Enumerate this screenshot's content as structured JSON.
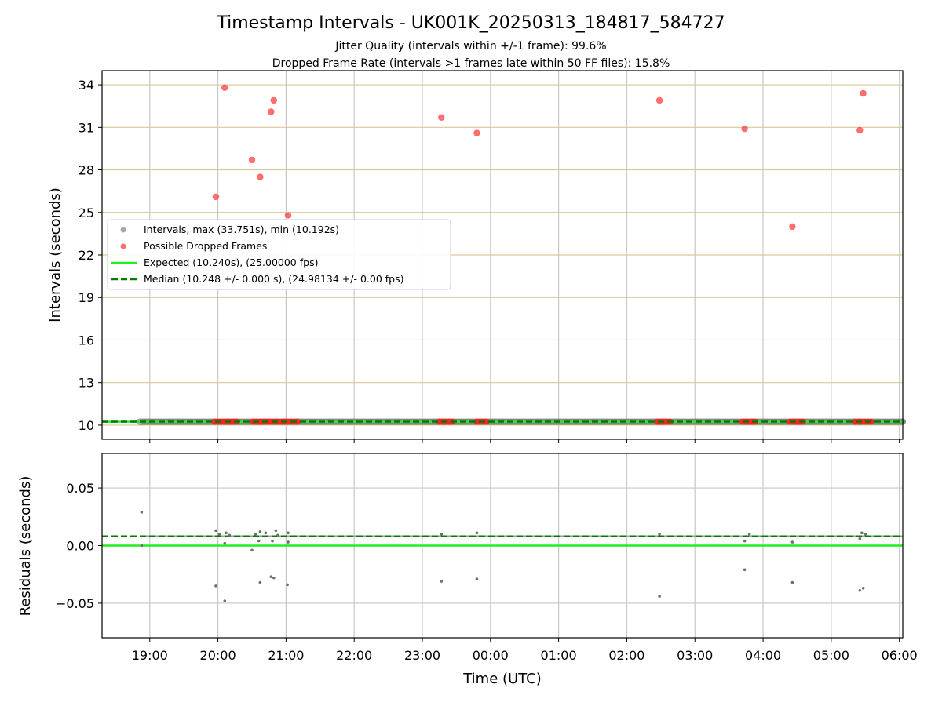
{
  "figure": {
    "title": "Timestamp Intervals - UK001K_20250313_184817_584727",
    "subtitle_1": "Jitter Quality (intervals within +/-1 frame): 99.6%",
    "subtitle_2": "Dropped Frame Rate (intervals >1 frames late within 50 FF files): 15.8%"
  },
  "chart_data": [
    {
      "type": "scatter",
      "panel": "intervals",
      "xlabel": "",
      "ylabel": "Intervals (seconds)",
      "x_unit": "hours since 00:00 UTC (values > 24 are after midnight)",
      "xlim": [
        18.3,
        30.05
      ],
      "ylim": [
        9.0,
        35.0
      ],
      "y_ticks": [
        10,
        13,
        16,
        19,
        22,
        25,
        28,
        31,
        34
      ],
      "grid": true,
      "legend_position": "center-left",
      "legend": [
        {
          "label": "Intervals, max (33.751s), min (10.192s)",
          "kind": "marker",
          "color": "#a9a9a9"
        },
        {
          "label": "Possible Dropped Frames",
          "kind": "marker",
          "color": "#ff5555"
        },
        {
          "label": "Expected (10.240s), (25.00000 fps)",
          "kind": "solid-line",
          "color": "#22ee22"
        },
        {
          "label": "Median (10.248 +/- 0.000 s), (24.98134 +/- 0.00 fps)",
          "kind": "dashed-line",
          "color": "#007a00"
        }
      ],
      "series": [
        {
          "name": "Intervals, max (33.751s), min (10.192s)",
          "color": "#808080",
          "x_range": [
            18.85,
            30.05
          ],
          "y": 10.24
        },
        {
          "name": "Possible Dropped Frames",
          "color": "#ff3333",
          "points": [
            [
              19.97,
              26.1
            ],
            [
              20.1,
              33.8
            ],
            [
              20.5,
              28.7
            ],
            [
              20.62,
              27.5
            ],
            [
              20.78,
              32.1
            ],
            [
              20.82,
              32.9
            ],
            [
              21.03,
              24.8
            ],
            [
              23.28,
              31.7
            ],
            [
              23.8,
              30.6
            ],
            [
              26.48,
              32.9
            ],
            [
              27.73,
              30.9
            ],
            [
              28.43,
              24.0
            ],
            [
              29.42,
              30.8
            ],
            [
              29.47,
              33.4
            ]
          ],
          "clusters_at_base": [
            [
              19.95,
              20.3
            ],
            [
              20.52,
              21.2
            ],
            [
              23.25,
              23.45
            ],
            [
              23.8,
              23.97
            ],
            [
              26.45,
              26.65
            ],
            [
              27.7,
              27.9
            ],
            [
              28.4,
              28.6
            ],
            [
              29.35,
              29.62
            ]
          ]
        },
        {
          "name": "Expected (10.240s), (25.00000 fps)",
          "color": "#22ee22",
          "y": 10.24
        },
        {
          "name": "Median (10.248 +/- 0.000 s), (24.98134 +/- 0.00 fps)",
          "color": "#007a00",
          "y": 10.248
        }
      ]
    },
    {
      "type": "scatter",
      "panel": "residuals",
      "xlabel": "Time (UTC)",
      "ylabel": "Residuals (seconds)",
      "x_unit": "hours since 00:00 UTC (values > 24 are after midnight)",
      "xlim": [
        18.3,
        30.05
      ],
      "ylim": [
        -0.08,
        0.08
      ],
      "y_ticks": [
        -0.05,
        0.0,
        0.05
      ],
      "y_tick_labels": [
        "−0.05",
        "0.00",
        "0.05"
      ],
      "x_ticks": [
        19,
        20,
        21,
        22,
        23,
        24,
        25,
        26,
        27,
        28,
        29,
        30
      ],
      "x_tick_labels": [
        "19:00",
        "20:00",
        "21:00",
        "22:00",
        "23:00",
        "00:00",
        "01:00",
        "02:00",
        "03:00",
        "04:00",
        "05:00",
        "06:00"
      ],
      "grid": true,
      "series": [
        {
          "name": "residuals",
          "color": "#707070",
          "baseline": 0.008,
          "points": [
            [
              18.88,
              0.029
            ],
            [
              18.88,
              0.0
            ],
            [
              19.97,
              -0.035
            ],
            [
              19.97,
              0.013
            ],
            [
              20.02,
              0.01
            ],
            [
              20.1,
              0.002
            ],
            [
              20.1,
              -0.048
            ],
            [
              20.12,
              0.011
            ],
            [
              20.17,
              0.009
            ],
            [
              20.5,
              -0.004
            ],
            [
              20.55,
              0.01
            ],
            [
              20.6,
              0.004
            ],
            [
              20.62,
              -0.032
            ],
            [
              20.62,
              0.012
            ],
            [
              20.7,
              0.011
            ],
            [
              20.78,
              -0.027
            ],
            [
              20.8,
              0.004
            ],
            [
              20.82,
              -0.028
            ],
            [
              20.85,
              0.013
            ],
            [
              20.88,
              0.009
            ],
            [
              21.02,
              -0.034
            ],
            [
              21.03,
              0.003
            ],
            [
              21.03,
              0.011
            ],
            [
              23.28,
              -0.031
            ],
            [
              23.28,
              0.01
            ],
            [
              23.8,
              -0.029
            ],
            [
              23.8,
              0.011
            ],
            [
              26.48,
              -0.044
            ],
            [
              26.48,
              0.01
            ],
            [
              27.73,
              -0.021
            ],
            [
              27.73,
              0.004
            ],
            [
              27.8,
              0.01
            ],
            [
              28.43,
              -0.032
            ],
            [
              28.43,
              0.003
            ],
            [
              29.42,
              -0.039
            ],
            [
              29.47,
              -0.037
            ],
            [
              29.45,
              0.011
            ],
            [
              29.5,
              0.01
            ],
            [
              29.42,
              0.006
            ]
          ]
        },
        {
          "name": "expected",
          "color": "#22ee22",
          "y": 0.0
        },
        {
          "name": "median",
          "color": "#007a00",
          "y": 0.008
        }
      ]
    }
  ]
}
